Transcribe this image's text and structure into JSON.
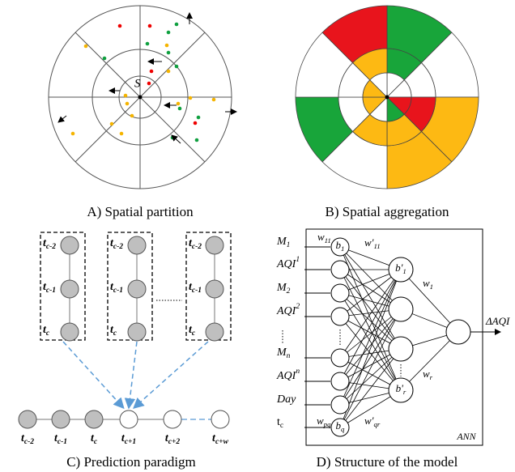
{
  "panel_a": {
    "caption": "A) Spatial partition",
    "center_label": "S"
  },
  "panel_b": {
    "caption": "B) Spatial aggregation"
  },
  "panel_c": {
    "caption": "C) Prediction paradigm",
    "window_labels": [
      {
        "base": "t",
        "sub": "c-2"
      },
      {
        "base": "t",
        "sub": "c-1"
      },
      {
        "base": "t",
        "sub": "c"
      }
    ],
    "timeline_labels": [
      {
        "base": "t",
        "sub": "c-2"
      },
      {
        "base": "t",
        "sub": "c-1"
      },
      {
        "base": "t",
        "sub": "c"
      },
      {
        "base": "t",
        "sub": "c+1"
      },
      {
        "base": "t",
        "sub": "c+2"
      },
      {
        "base": "t",
        "sub": "c+w"
      }
    ]
  },
  "panel_d": {
    "caption": "D) Structure of the model",
    "network_label": "ANN",
    "output": "ΔAQI",
    "inputs": [
      {
        "base": "M",
        "sub": "1"
      },
      {
        "base": "AQI",
        "sup": "1"
      },
      {
        "base": "M",
        "sub": "2"
      },
      {
        "base": "AQI",
        "sup": "2"
      },
      {
        "base": "M",
        "sub": "n"
      },
      {
        "base": "AQI",
        "sup": "n"
      },
      {
        "base": "Day"
      },
      {
        "base": "t",
        "sub": "c"
      }
    ],
    "weights": [
      {
        "base": "w",
        "sub": "11"
      },
      {
        "base": "w'",
        "sub": "11"
      },
      {
        "base": "w",
        "sub": "pq"
      },
      {
        "base": "w'",
        "sub": "qr"
      },
      {
        "base": "w",
        "sub": "1"
      },
      {
        "base": "w",
        "sub": "r"
      }
    ],
    "biases": [
      {
        "base": "b",
        "sub": "1"
      },
      {
        "base": "b",
        "sub": "q"
      },
      {
        "base": "b'",
        "sub": "1"
      },
      {
        "base": "b'",
        "sub": "r"
      }
    ]
  }
}
